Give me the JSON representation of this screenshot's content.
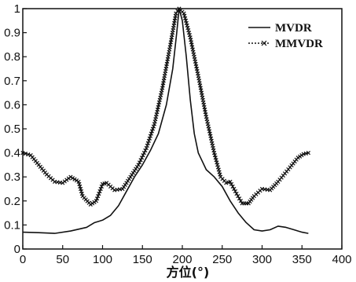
{
  "chart_data": {
    "type": "line",
    "title": "",
    "xlabel": "方位(°)",
    "ylabel": "",
    "xlim": [
      0,
      400
    ],
    "ylim": [
      0,
      1
    ],
    "x_ticks": [
      0,
      50,
      100,
      150,
      200,
      250,
      300,
      350,
      400
    ],
    "y_ticks": [
      0,
      0.1,
      0.2,
      0.3,
      0.4,
      0.5,
      0.6,
      0.7,
      0.8,
      0.9,
      1
    ],
    "grid": false,
    "legend_position": "top-right",
    "series": [
      {
        "name": "MVDR",
        "style": "solid",
        "color": "#111111",
        "points": [
          [
            0,
            0.07
          ],
          [
            20,
            0.068
          ],
          [
            40,
            0.065
          ],
          [
            60,
            0.075
          ],
          [
            80,
            0.09
          ],
          [
            90,
            0.11
          ],
          [
            100,
            0.12
          ],
          [
            110,
            0.14
          ],
          [
            120,
            0.18
          ],
          [
            130,
            0.24
          ],
          [
            140,
            0.3
          ],
          [
            150,
            0.35
          ],
          [
            160,
            0.41
          ],
          [
            170,
            0.48
          ],
          [
            180,
            0.6
          ],
          [
            188,
            0.75
          ],
          [
            193,
            0.9
          ],
          [
            196,
            1.0
          ],
          [
            200,
            0.95
          ],
          [
            205,
            0.8
          ],
          [
            210,
            0.62
          ],
          [
            215,
            0.48
          ],
          [
            220,
            0.4
          ],
          [
            230,
            0.33
          ],
          [
            240,
            0.3
          ],
          [
            250,
            0.26
          ],
          [
            260,
            0.2
          ],
          [
            270,
            0.15
          ],
          [
            280,
            0.11
          ],
          [
            290,
            0.08
          ],
          [
            300,
            0.075
          ],
          [
            310,
            0.08
          ],
          [
            320,
            0.095
          ],
          [
            330,
            0.09
          ],
          [
            340,
            0.08
          ],
          [
            350,
            0.07
          ],
          [
            358,
            0.065
          ]
        ]
      },
      {
        "name": "MMVDR",
        "style": "dotted-x",
        "color": "#111111",
        "points": [
          [
            0,
            0.4
          ],
          [
            10,
            0.39
          ],
          [
            20,
            0.35
          ],
          [
            30,
            0.31
          ],
          [
            40,
            0.28
          ],
          [
            50,
            0.275
          ],
          [
            60,
            0.3
          ],
          [
            70,
            0.28
          ],
          [
            75,
            0.22
          ],
          [
            85,
            0.185
          ],
          [
            92,
            0.2
          ],
          [
            100,
            0.27
          ],
          [
            105,
            0.275
          ],
          [
            115,
            0.245
          ],
          [
            125,
            0.25
          ],
          [
            135,
            0.3
          ],
          [
            145,
            0.35
          ],
          [
            155,
            0.42
          ],
          [
            165,
            0.52
          ],
          [
            175,
            0.67
          ],
          [
            185,
            0.85
          ],
          [
            192,
            0.98
          ],
          [
            196,
            1.0
          ],
          [
            202,
            0.98
          ],
          [
            210,
            0.88
          ],
          [
            220,
            0.72
          ],
          [
            230,
            0.55
          ],
          [
            240,
            0.4
          ],
          [
            248,
            0.3
          ],
          [
            255,
            0.275
          ],
          [
            260,
            0.28
          ],
          [
            268,
            0.23
          ],
          [
            275,
            0.19
          ],
          [
            283,
            0.19
          ],
          [
            290,
            0.22
          ],
          [
            300,
            0.25
          ],
          [
            310,
            0.245
          ],
          [
            320,
            0.28
          ],
          [
            335,
            0.34
          ],
          [
            345,
            0.38
          ],
          [
            352,
            0.395
          ],
          [
            358,
            0.4
          ]
        ]
      }
    ]
  }
}
